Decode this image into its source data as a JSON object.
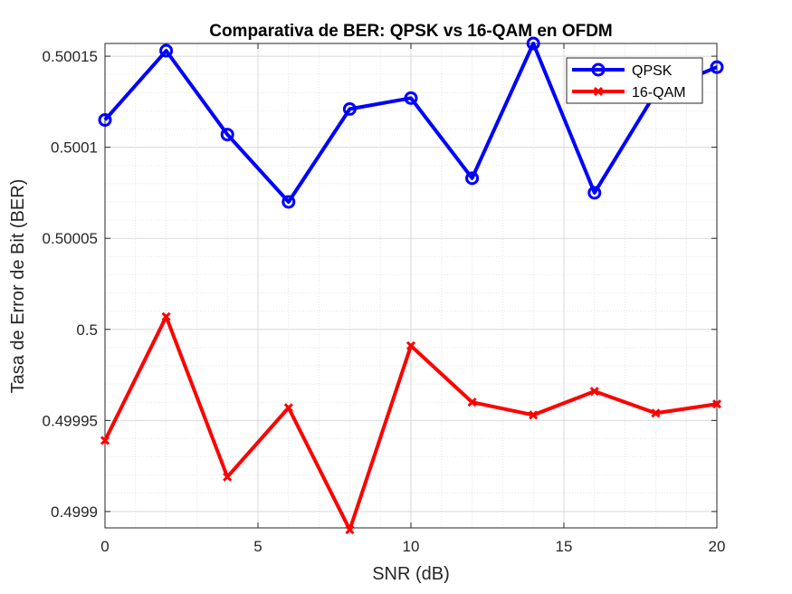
{
  "chart_data": {
    "type": "line",
    "title": "Comparativa de BER: QPSK vs 16-QAM en OFDM",
    "xlabel": "SNR (dB)",
    "ylabel": "Tasa de Error de Bit (BER)",
    "x": [
      0,
      2,
      4,
      6,
      8,
      10,
      12,
      14,
      16,
      18,
      20
    ],
    "xlim": [
      0,
      20
    ],
    "ylim": [
      0.499891,
      0.500157
    ],
    "xticks": [
      0,
      5,
      10,
      15,
      20
    ],
    "xtick_labels": [
      "0",
      "5",
      "10",
      "15",
      "20"
    ],
    "yticks": [
      0.4999,
      0.49995,
      0.5,
      0.50005,
      0.5001,
      0.50015
    ],
    "ytick_labels": [
      "0.4999",
      "0.49995",
      "0.5",
      "0.50005",
      "0.5001",
      "0.50015"
    ],
    "grid": true,
    "minor_grid": true,
    "legend_position": "top-right",
    "series": [
      {
        "name": "QPSK",
        "color": "#0000ff",
        "marker": "circle",
        "values": [
          0.500115,
          0.500153,
          0.500107,
          0.50007,
          0.500121,
          0.500127,
          0.500083,
          0.500157,
          0.500075,
          0.50013,
          0.500144
        ]
      },
      {
        "name": "16-QAM",
        "color": "#ff0000",
        "marker": "x",
        "values": [
          0.499939,
          0.500007,
          0.499919,
          0.499957,
          0.49989,
          0.499991,
          0.49996,
          0.499953,
          0.499966,
          0.499954,
          0.499959
        ]
      }
    ]
  }
}
